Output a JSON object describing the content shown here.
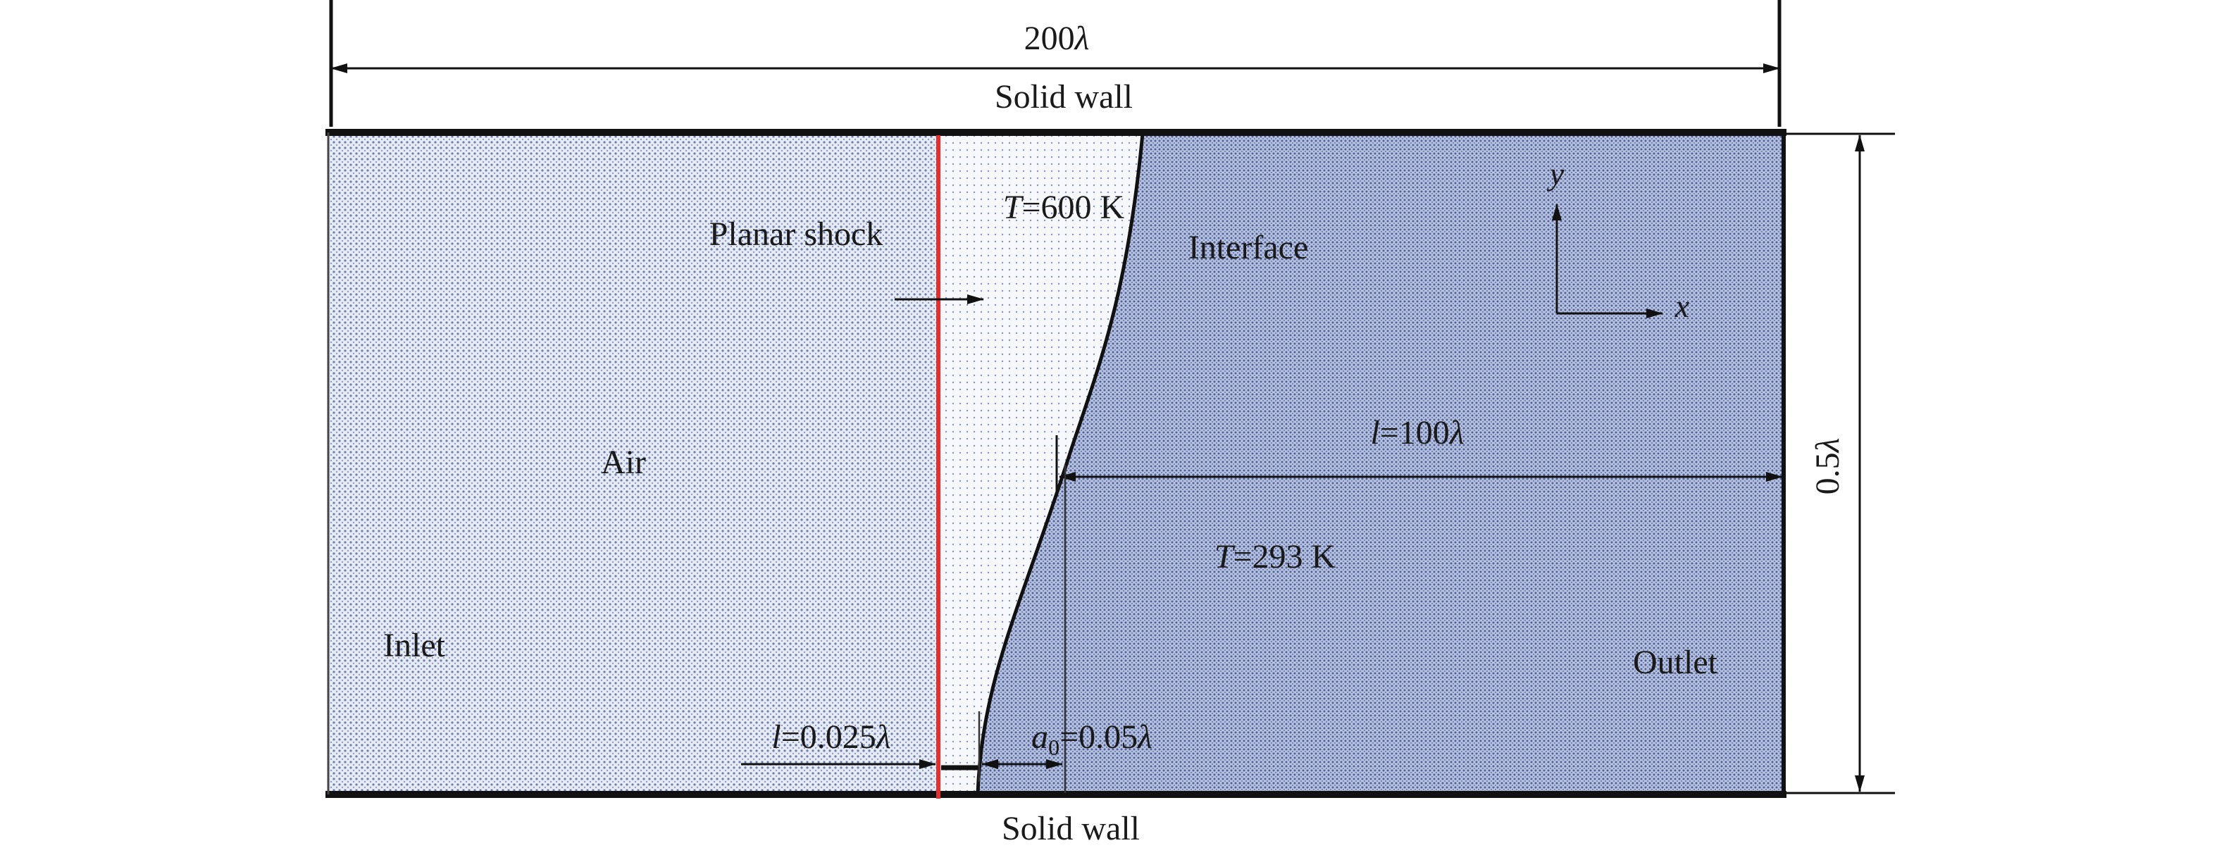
{
  "top_wall_label": "Solid wall",
  "bottom_wall_label": "Solid wall",
  "domain_length": {
    "num": "200",
    "sym": "λ"
  },
  "domain_height": {
    "num": "0.5",
    "sym": "λ"
  },
  "shock_label": "Planar shock",
  "air_label": "Air",
  "inlet_label": "Inlet",
  "outlet_label": "Outlet",
  "interface_label": "Interface",
  "post_shock_temp": {
    "var": "T",
    "rest": "=600 K"
  },
  "pre_shock_temp": {
    "var": "T",
    "rest": "=293 K"
  },
  "gap_length": {
    "var": "l",
    "rest": "=0.025",
    "sym": "λ"
  },
  "interface_distance": {
    "var": "l",
    "rest": "=100",
    "sym": "λ"
  },
  "amplitude": {
    "var": "a",
    "sub": "0",
    "rest": "=0.05",
    "sym": "λ"
  },
  "axes": {
    "y": "y",
    "x": "x"
  },
  "colors": {
    "shock_line": "#e03030",
    "wall": "#111111",
    "air_fill": "#c9d2e6",
    "heavy_fill": "#8f9dc7",
    "hot_fill": "#eef0f6"
  }
}
